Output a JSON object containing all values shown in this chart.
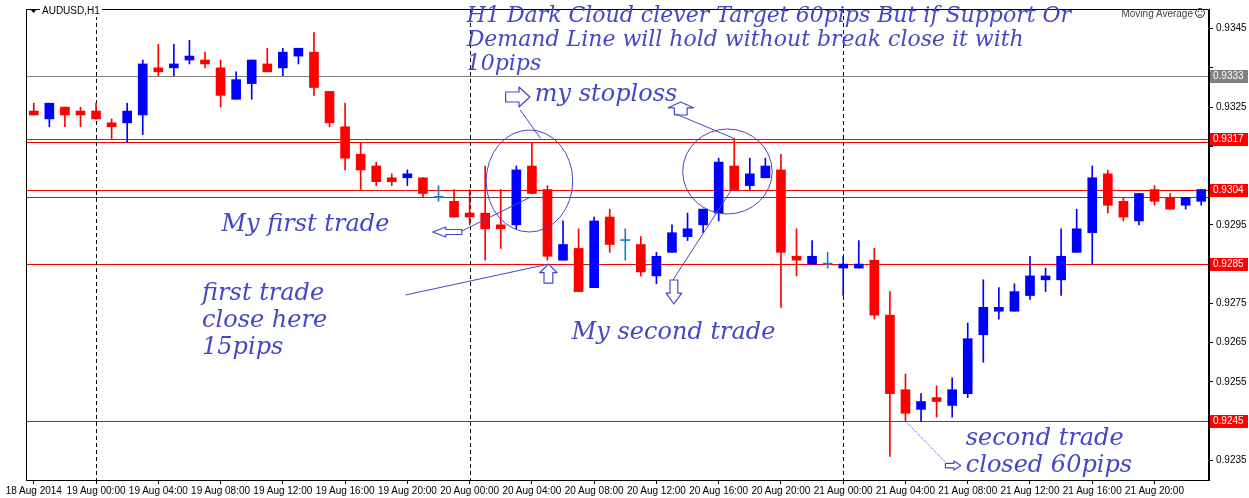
{
  "chart_data": {
    "type": "candlestick",
    "title": "AUDUSD,H1",
    "categories": [
      "18 Aug 2014",
      null,
      null,
      null,
      "19 Aug 00:00",
      null,
      null,
      null,
      "19 Aug 04:00",
      null,
      null,
      null,
      "19 Aug 08:00",
      null,
      null,
      null,
      "19 Aug 12:00",
      null,
      null,
      null,
      "19 Aug 16:00",
      null,
      null,
      null,
      "19 Aug 20:00",
      null,
      null,
      null,
      "20 Aug 00:00",
      null,
      null,
      null,
      "20 Aug 04:00",
      null,
      null,
      null,
      "20 Aug 08:00",
      null,
      null,
      null,
      "20 Aug 12:00",
      null,
      null,
      null,
      "20 Aug 16:00",
      null,
      null,
      null,
      "20 Aug 20:00",
      null,
      null,
      null,
      "21 Aug 00:00",
      null,
      null,
      null,
      "21 Aug 04:00",
      null,
      null,
      null,
      "21 Aug 08:00",
      null,
      null,
      null,
      "21 Aug 12:00",
      null,
      null,
      null,
      "21 Aug 16:00",
      null,
      null,
      null,
      "21 Aug 20:00",
      null,
      null,
      null
    ],
    "ohlc": [
      [
        0.9324,
        0.9326,
        0.9323,
        0.9323
      ],
      [
        0.9322,
        0.9326,
        0.932,
        0.9326
      ],
      [
        0.9325,
        0.9325,
        0.932,
        0.9323
      ],
      [
        0.9324,
        0.9325,
        0.932,
        0.9323
      ],
      [
        0.9324,
        0.9326,
        0.9322,
        0.9322
      ],
      [
        0.9321,
        0.9322,
        0.9317,
        0.932
      ],
      [
        0.9321,
        0.9326,
        0.9316,
        0.9324
      ],
      [
        0.9323,
        0.9337,
        0.9318,
        0.9336
      ],
      [
        0.9335,
        0.9341,
        0.9333,
        0.9334
      ],
      [
        0.9335,
        0.9341,
        0.9333,
        0.9336
      ],
      [
        0.9337,
        0.9342,
        0.9336,
        0.9338
      ],
      [
        0.9337,
        0.9339,
        0.9335,
        0.9336
      ],
      [
        0.9335,
        0.9337,
        0.9325,
        0.9328
      ],
      [
        0.9327,
        0.9334,
        0.9327,
        0.9332
      ],
      [
        0.9331,
        0.9337,
        0.9327,
        0.9337
      ],
      [
        0.9336,
        0.934,
        0.9334,
        0.9334
      ],
      [
        0.9335,
        0.934,
        0.9333,
        0.9339
      ],
      [
        0.9338,
        0.934,
        0.9336,
        0.934
      ],
      [
        0.9339,
        0.9344,
        0.9328,
        0.933
      ],
      [
        0.9329,
        0.9329,
        0.932,
        0.9321
      ],
      [
        0.932,
        0.9326,
        0.9309,
        0.9312
      ],
      [
        0.9313,
        0.9316,
        0.9304,
        0.9309
      ],
      [
        0.931,
        0.9311,
        0.9305,
        0.9306
      ],
      [
        0.9307,
        0.9308,
        0.9305,
        0.9306
      ],
      [
        0.9307,
        0.9309,
        0.9305,
        0.9308
      ],
      [
        0.9307,
        0.9307,
        0.9302,
        0.9303
      ],
      [
        0.9302,
        0.9305,
        0.9301,
        0.9302
      ],
      [
        0.9301,
        0.9304,
        0.9297,
        0.9297
      ],
      [
        0.9298,
        0.9304,
        0.9295,
        0.9297
      ],
      [
        0.9298,
        0.931,
        0.9286,
        0.9294
      ],
      [
        0.9295,
        0.9304,
        0.9289,
        0.9294
      ],
      [
        0.9295,
        0.931,
        0.9294,
        0.9309
      ],
      [
        0.931,
        0.9316,
        0.9303,
        0.9303
      ],
      [
        0.9304,
        0.9305,
        0.9286,
        0.9287
      ],
      [
        0.9286,
        0.9296,
        0.9286,
        0.929
      ],
      [
        0.9289,
        0.9294,
        0.9278,
        0.9278
      ],
      [
        0.9279,
        0.9297,
        0.9279,
        0.9296
      ],
      [
        0.9297,
        0.9299,
        0.9288,
        0.929
      ],
      [
        0.9291,
        0.9294,
        0.9286,
        0.9291
      ],
      [
        0.929,
        0.9292,
        0.9282,
        0.9283
      ],
      [
        0.9282,
        0.9288,
        0.928,
        0.9287
      ],
      [
        0.9288,
        0.9295,
        0.9288,
        0.9293
      ],
      [
        0.9292,
        0.9298,
        0.9291,
        0.9294
      ],
      [
        0.9295,
        0.9299,
        0.9293,
        0.9299
      ],
      [
        0.9298,
        0.9312,
        0.9296,
        0.9311
      ],
      [
        0.931,
        0.9317,
        0.9304,
        0.9304
      ],
      [
        0.9305,
        0.9312,
        0.9304,
        0.9308
      ],
      [
        0.9307,
        0.9312,
        0.9307,
        0.931
      ],
      [
        0.9309,
        0.9313,
        0.9274,
        0.9288
      ],
      [
        0.9287,
        0.9294,
        0.9282,
        0.9286
      ],
      [
        0.9285,
        0.9291,
        0.9285,
        0.9287
      ],
      [
        0.9285,
        0.9288,
        0.9284,
        0.9285
      ],
      [
        0.9284,
        0.9287,
        0.9277,
        0.9285
      ],
      [
        0.9284,
        0.9291,
        0.9284,
        0.9285
      ],
      [
        0.9286,
        0.9289,
        0.9271,
        0.9272
      ],
      [
        0.9272,
        0.9278,
        0.9236,
        0.9252
      ],
      [
        0.9253,
        0.9257,
        0.9245,
        0.9247
      ],
      [
        0.9248,
        0.9252,
        0.9245,
        0.925
      ],
      [
        0.9251,
        0.9254,
        0.9246,
        0.925
      ],
      [
        0.9249,
        0.9256,
        0.9246,
        0.9253
      ],
      [
        0.9252,
        0.927,
        0.9251,
        0.9266
      ],
      [
        0.9267,
        0.9281,
        0.926,
        0.9274
      ],
      [
        0.9273,
        0.9279,
        0.9271,
        0.9274
      ],
      [
        0.9273,
        0.928,
        0.9273,
        0.9278
      ],
      [
        0.9277,
        0.9287,
        0.9276,
        0.9282
      ],
      [
        0.9281,
        0.9284,
        0.9278,
        0.9282
      ],
      [
        0.9281,
        0.9294,
        0.9277,
        0.9287
      ],
      [
        0.9288,
        0.9299,
        0.9288,
        0.9294
      ],
      [
        0.9293,
        0.931,
        0.9285,
        0.9307
      ],
      [
        0.9308,
        0.9309,
        0.9298,
        0.93
      ],
      [
        0.9301,
        0.9302,
        0.9296,
        0.9297
      ],
      [
        0.9296,
        0.9303,
        0.9295,
        0.9303
      ],
      [
        0.9304,
        0.9305,
        0.93,
        0.9301
      ],
      [
        0.9302,
        0.9303,
        0.9299,
        0.9299
      ],
      [
        0.93,
        0.9302,
        0.9299,
        0.9302
      ],
      [
        0.9301,
        0.9304,
        0.93,
        0.9304
      ]
    ],
    "colors": [
      "#ff0000",
      "#0000ff",
      "#ff0000",
      "#ff0000",
      "#ff0000",
      "#ff0000",
      "#0000ff",
      "#0000ff",
      "#ff0000",
      "#0000ff",
      "#0000ff",
      "#ff0000",
      "#ff0000",
      "#0000ff",
      "#0000ff",
      "#ff0000",
      "#0000ff",
      "#0000ff",
      "#ff0000",
      "#ff0000",
      "#ff0000",
      "#ff0000",
      "#ff0000",
      "#ff0000",
      "#0000ff",
      "#ff0000",
      "#1e7fc0",
      "#ff0000",
      "#ff0000",
      "#ff0000",
      "#ff0000",
      "#0000ff",
      "#ff0000",
      "#ff0000",
      "#0000ff",
      "#ff0000",
      "#0000ff",
      "#ff0000",
      "#1e7fc0",
      "#ff0000",
      "#0000ff",
      "#0000ff",
      "#0000ff",
      "#0000ff",
      "#0000ff",
      "#ff0000",
      "#0000ff",
      "#0000ff",
      "#ff0000",
      "#ff0000",
      "#0000ff",
      "#1e7fc0",
      "#0000ff",
      "#0000ff",
      "#ff0000",
      "#ff0000",
      "#ff0000",
      "#0000ff",
      "#ff0000",
      "#0000ff",
      "#0000ff",
      "#0000ff",
      "#0000ff",
      "#0000ff",
      "#0000ff",
      "#0000ff",
      "#0000ff",
      "#0000ff",
      "#0000ff",
      "#ff0000",
      "#ff0000",
      "#0000ff",
      "#ff0000",
      "#ff0000",
      "#0000ff",
      "#0000ff"
    ],
    "ylim": [
      0.923,
      0.935
    ],
    "yticks": [
      0.9235,
      {
        "value": 0.9245,
        "label": null
      },
      0.9255,
      0.9265,
      0.9275,
      {
        "value": 0.9285,
        "label": null
      },
      0.9295,
      {
        "value": 0.9305,
        "label": null
      },
      {
        "value": 0.9315,
        "label": null
      },
      0.9325,
      {
        "value": 0.9335,
        "label": null
      },
      0.9345
    ],
    "ref_lines": [
      {
        "axis": "y",
        "value": 0.9333,
        "label": "0.9333",
        "color": "#808080"
      },
      {
        "axis": "y",
        "value": 0.9317,
        "label": "0.9317",
        "color": "#ff0000"
      },
      {
        "axis": "y",
        "value": 0.9316,
        "color": "#ff0000"
      },
      {
        "axis": "y",
        "value": 0.9304,
        "label": "0.9304",
        "color": "#ff0000"
      },
      {
        "axis": "y",
        "value": 0.9302,
        "color": "#ff0000"
      },
      {
        "axis": "y",
        "value": 0.9285,
        "label": "0.9285",
        "color": "#ff0000"
      },
      {
        "axis": "y",
        "value": 0.9245,
        "label": "0.9245",
        "color": "#ff0000"
      },
      {
        "axis": "x",
        "value": "19 Aug 00:00",
        "color": "#000000",
        "line_style": "dashed"
      },
      {
        "axis": "x",
        "value": "20 Aug 00:00",
        "color": "#000000",
        "line_style": "dashed"
      },
      {
        "axis": "x",
        "value": "21 Aug 00:00",
        "color": "#000000",
        "line_style": "dashed"
      }
    ],
    "annotations": [
      "H1 Dark Cloud clever Target 60pips But if Support Or Demand Line will hold without break close it with 10pips",
      {
        "text": "my stoploss",
        "y": 0.9317
      },
      {
        "text": "My first trade",
        "y": 0.9302
      },
      {
        "text": "first trade close here 15pips",
        "y": 0.9285
      },
      "My second trade",
      {
        "text": "second trade closed 60pips",
        "y": 0.9245
      },
      "Moving Average"
    ]
  }
}
